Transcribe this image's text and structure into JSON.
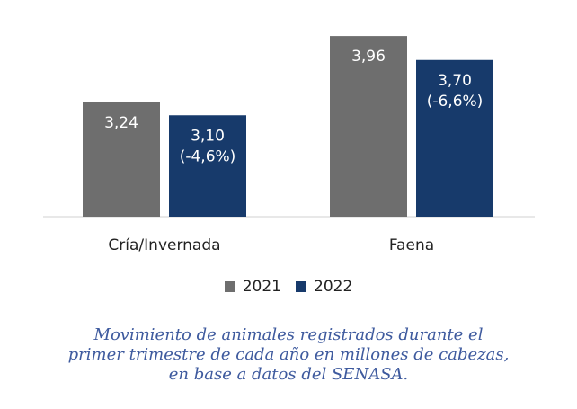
{
  "chart_data": {
    "type": "bar",
    "categories": [
      "Cría/Invernada",
      "Faena"
    ],
    "series": [
      {
        "name": "2021",
        "color": "#6e6e6e",
        "values": [
          3.24,
          3.96
        ],
        "labels": [
          [
            "3,24"
          ],
          [
            "3,96"
          ]
        ]
      },
      {
        "name": "2022",
        "color": "#173a6b",
        "values": [
          3.1,
          3.7
        ],
        "labels": [
          [
            "3,10",
            "(-4,6%)"
          ],
          [
            "3,70",
            "(-6,6%)"
          ]
        ]
      }
    ],
    "ylim": [
      2.0,
      4.0
    ],
    "grid": false,
    "legend": "bottom"
  },
  "caption": {
    "lines": [
      "Movimiento de animales registrados durante el",
      "primer trimestre de cada año en millones de cabezas,",
      "en base a datos del SENASA."
    ]
  }
}
